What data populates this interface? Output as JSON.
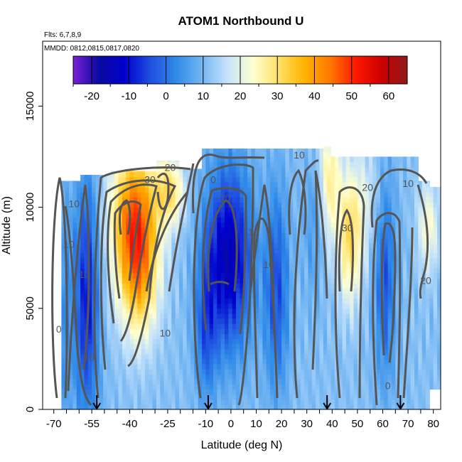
{
  "chart_data": {
    "type": "heatmap",
    "title": "ATOM1 Northbound U",
    "flights_note": "Flts: 6,7,8,9",
    "dates_note": "MMDD: 0812,0815,0817,0820",
    "xlabel": "Latitude (deg N)",
    "ylabel": "Altitude (m)",
    "xlim": [
      -70,
      82
    ],
    "ylim": [
      0,
      17500
    ],
    "x_ticks": [
      -70,
      -55,
      -40,
      -25,
      -10,
      0,
      10,
      20,
      30,
      40,
      50,
      60,
      70,
      80
    ],
    "y_ticks": [
      0,
      5000,
      10000,
      15000
    ],
    "colorbar": {
      "range": [
        -25,
        65
      ],
      "ticks": [
        -20,
        -10,
        0,
        10,
        20,
        30,
        40,
        50,
        60
      ],
      "colors": [
        "#7a1fd6",
        "#0a0aa0",
        "#0000cc",
        "#1f4fe0",
        "#2f8ae8",
        "#74b6f3",
        "#c5e3fb",
        "#ffffd0",
        "#ffe066",
        "#ffb300",
        "#ff7700",
        "#ff1800",
        "#cc0000",
        "#8e1a1a"
      ]
    },
    "contour_labels": [
      {
        "text": "30",
        "lat": -32,
        "alt": 11200
      },
      {
        "text": "20",
        "lat": -24,
        "alt": 11800
      },
      {
        "text": "10",
        "lat": 27,
        "alt": 12400
      },
      {
        "text": "0",
        "lat": -7,
        "alt": 11200
      },
      {
        "text": "-10",
        "lat": -3,
        "alt": 10300
      },
      {
        "text": "10",
        "lat": -62,
        "alt": 10000
      },
      {
        "text": "10",
        "lat": -64,
        "alt": 8000
      },
      {
        "text": "10",
        "lat": -58,
        "alt": 6500
      },
      {
        "text": "0",
        "lat": -68,
        "alt": 3800
      },
      {
        "text": "10",
        "lat": -56,
        "alt": 2400
      },
      {
        "text": "10",
        "lat": -26,
        "alt": 3600
      },
      {
        "text": "10",
        "lat": 9,
        "alt": 8600
      },
      {
        "text": "10",
        "lat": 15,
        "alt": 7000
      },
      {
        "text": "30",
        "lat": 46,
        "alt": 8800
      },
      {
        "text": "20",
        "lat": 54,
        "alt": 10800
      },
      {
        "text": "10",
        "lat": 70,
        "alt": 11000
      },
      {
        "text": "20",
        "lat": 77,
        "alt": 6200
      },
      {
        "text": "0",
        "lat": 62,
        "alt": 1000
      }
    ],
    "flight_arrows": [
      -53,
      -9,
      38,
      67
    ]
  }
}
